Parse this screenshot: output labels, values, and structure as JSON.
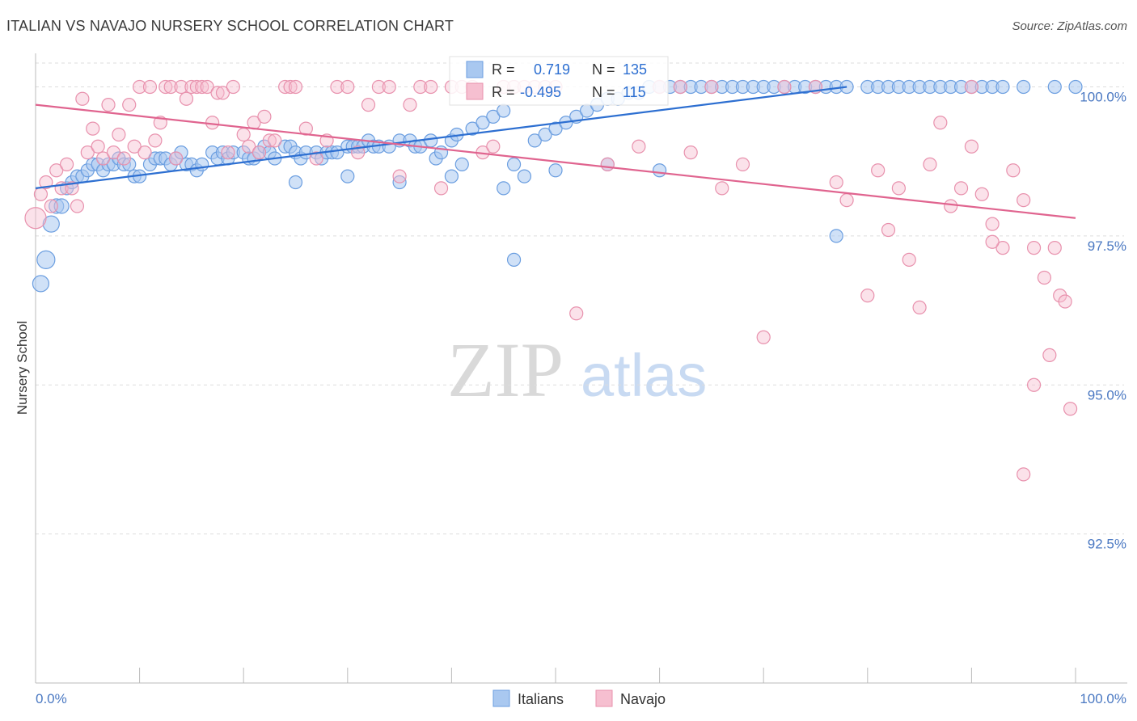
{
  "title": "ITALIAN VS NAVAJO NURSERY SCHOOL CORRELATION CHART",
  "source": "Source: ZipAtlas.com",
  "watermark": {
    "zip": "ZIP",
    "atlas": "atlas"
  },
  "colors": {
    "blue": "#6b9ee0",
    "blue_fill": "#a9c8f0",
    "blue_line": "#2d6fd1",
    "pink": "#e891ad",
    "pink_fill": "#f6bfd0",
    "pink_line": "#e0648f",
    "tick_label": "#4a78c2",
    "grid": "#dddddd"
  },
  "legend_top": {
    "row1": {
      "r_label": "R =",
      "r_value": "0.719",
      "n_label": "N =",
      "n_value": "135"
    },
    "row2": {
      "r_label": "R =",
      "r_value": "-0.495",
      "n_label": "N =",
      "n_value": "115"
    }
  },
  "legend_bottom": {
    "italians": "Italians",
    "navajo": "Navajo"
  },
  "chart_data": {
    "type": "scatter",
    "title": "ITALIAN VS NAVAJO NURSERY SCHOOL CORRELATION CHART",
    "xlabel": "",
    "ylabel": "Nursery School",
    "xlim": [
      0,
      100
    ],
    "ylim": [
      90.0,
      100.4
    ],
    "x_tick_labels": [
      "0.0%",
      "100.0%"
    ],
    "y_ticks": [
      {
        "value": 100.0,
        "label": "100.0%"
      },
      {
        "value": 97.5,
        "label": "97.5%"
      },
      {
        "value": 95.0,
        "label": "95.0%"
      },
      {
        "value": 92.5,
        "label": "92.5%"
      }
    ],
    "grid": true,
    "series": [
      {
        "name": "Italians",
        "r": 0.719,
        "n": 135,
        "trend": {
          "x": [
            0,
            78
          ],
          "y": [
            98.3,
            100.0
          ]
        },
        "points": [
          [
            0.5,
            96.7
          ],
          [
            1,
            97.1
          ],
          [
            1.5,
            97.7
          ],
          [
            2,
            98
          ],
          [
            2.5,
            98
          ],
          [
            3,
            98.3
          ],
          [
            3.5,
            98.4
          ],
          [
            4,
            98.5
          ],
          [
            4.5,
            98.5
          ],
          [
            5,
            98.6
          ],
          [
            5.5,
            98.7
          ],
          [
            6,
            98.7
          ],
          [
            6.5,
            98.6
          ],
          [
            7,
            98.7
          ],
          [
            7.5,
            98.7
          ],
          [
            8,
            98.8
          ],
          [
            8.5,
            98.7
          ],
          [
            9,
            98.7
          ],
          [
            9.5,
            98.5
          ],
          [
            10,
            98.5
          ],
          [
            11,
            98.7
          ],
          [
            11.5,
            98.8
          ],
          [
            12,
            98.8
          ],
          [
            12.5,
            98.8
          ],
          [
            13,
            98.7
          ],
          [
            13.5,
            98.8
          ],
          [
            14,
            98.9
          ],
          [
            14.5,
            98.7
          ],
          [
            15,
            98.7
          ],
          [
            15.5,
            98.6
          ],
          [
            16,
            98.7
          ],
          [
            17,
            98.9
          ],
          [
            17.5,
            98.8
          ],
          [
            18,
            98.9
          ],
          [
            18.5,
            98.8
          ],
          [
            19,
            98.9
          ],
          [
            20,
            98.9
          ],
          [
            20.5,
            98.8
          ],
          [
            21,
            98.8
          ],
          [
            21.5,
            98.9
          ],
          [
            22,
            99
          ],
          [
            22.5,
            98.9
          ],
          [
            23,
            98.8
          ],
          [
            24,
            99
          ],
          [
            24.5,
            99
          ],
          [
            25,
            98.9
          ],
          [
            25.5,
            98.8
          ],
          [
            26,
            98.9
          ],
          [
            27,
            98.9
          ],
          [
            27.5,
            98.8
          ],
          [
            28,
            98.9
          ],
          [
            28.5,
            98.9
          ],
          [
            29,
            98.9
          ],
          [
            30,
            99
          ],
          [
            30.5,
            99
          ],
          [
            31,
            99
          ],
          [
            31.5,
            99
          ],
          [
            32,
            99.1
          ],
          [
            32.5,
            99
          ],
          [
            33,
            99
          ],
          [
            34,
            99
          ],
          [
            35,
            99.1
          ],
          [
            36,
            99.1
          ],
          [
            36.5,
            99
          ],
          [
            37,
            99
          ],
          [
            38,
            99.1
          ],
          [
            38.5,
            98.8
          ],
          [
            39,
            98.9
          ],
          [
            40,
            99.1
          ],
          [
            40.5,
            99.2
          ],
          [
            41,
            98.7
          ],
          [
            42,
            99.3
          ],
          [
            43,
            99.4
          ],
          [
            44,
            99.5
          ],
          [
            45,
            99.6
          ],
          [
            46,
            98.7
          ],
          [
            47,
            98.5
          ],
          [
            48,
            99.1
          ],
          [
            49,
            99.2
          ],
          [
            50,
            99.3
          ],
          [
            51,
            99.4
          ],
          [
            52,
            99.5
          ],
          [
            53,
            99.6
          ],
          [
            54,
            99.7
          ],
          [
            55,
            99.8
          ],
          [
            56,
            99.8
          ],
          [
            57,
            99.9
          ],
          [
            58,
            99.9
          ],
          [
            59,
            100
          ],
          [
            60,
            100
          ],
          [
            61,
            100
          ],
          [
            62,
            100
          ],
          [
            63,
            100
          ],
          [
            64,
            100
          ],
          [
            65,
            100
          ],
          [
            66,
            100
          ],
          [
            67,
            100
          ],
          [
            68,
            100
          ],
          [
            69,
            100
          ],
          [
            70,
            100
          ],
          [
            71,
            100
          ],
          [
            72,
            100
          ],
          [
            73,
            100
          ],
          [
            74,
            100
          ],
          [
            75,
            100
          ],
          [
            76,
            100
          ],
          [
            77,
            100
          ],
          [
            78,
            100
          ],
          [
            80,
            100
          ],
          [
            81,
            100
          ],
          [
            82,
            100
          ],
          [
            83,
            100
          ],
          [
            84,
            100
          ],
          [
            85,
            100
          ],
          [
            86,
            100
          ],
          [
            87,
            100
          ],
          [
            88,
            100
          ],
          [
            89,
            100
          ],
          [
            90,
            100
          ],
          [
            91,
            100
          ],
          [
            92,
            100
          ],
          [
            93,
            100
          ],
          [
            95,
            100
          ],
          [
            98,
            100
          ],
          [
            100,
            100
          ],
          [
            46,
            97.1
          ],
          [
            45,
            98.3
          ],
          [
            40,
            98.5
          ],
          [
            30,
            98.5
          ],
          [
            25,
            98.4
          ],
          [
            55,
            98.7
          ],
          [
            50,
            98.6
          ],
          [
            35,
            98.4
          ],
          [
            60,
            98.6
          ],
          [
            77,
            97.5
          ]
        ]
      },
      {
        "name": "Navajo",
        "r": -0.495,
        "n": 115,
        "trend": {
          "x": [
            0,
            100
          ],
          "y": [
            99.7,
            97.8
          ]
        },
        "points": [
          [
            0,
            97.8
          ],
          [
            0.5,
            98.2
          ],
          [
            1,
            98.4
          ],
          [
            1.5,
            98
          ],
          [
            2,
            98.6
          ],
          [
            2.5,
            98.3
          ],
          [
            3,
            98.7
          ],
          [
            3.5,
            98.3
          ],
          [
            4,
            98
          ],
          [
            4.5,
            99.8
          ],
          [
            5,
            98.9
          ],
          [
            5.5,
            99.3
          ],
          [
            6,
            99
          ],
          [
            6.5,
            98.8
          ],
          [
            7,
            99.7
          ],
          [
            7.5,
            98.9
          ],
          [
            8,
            99.2
          ],
          [
            8.5,
            98.8
          ],
          [
            9,
            99.7
          ],
          [
            9.5,
            99
          ],
          [
            10,
            100
          ],
          [
            10.5,
            98.9
          ],
          [
            11,
            100
          ],
          [
            11.5,
            99.1
          ],
          [
            12,
            99.4
          ],
          [
            12.5,
            100
          ],
          [
            13,
            100
          ],
          [
            13.5,
            98.8
          ],
          [
            14,
            100
          ],
          [
            14.5,
            99.8
          ],
          [
            15,
            100
          ],
          [
            15.5,
            100
          ],
          [
            16,
            100
          ],
          [
            16.5,
            100
          ],
          [
            17,
            99.4
          ],
          [
            17.5,
            99.9
          ],
          [
            18,
            99.9
          ],
          [
            18.5,
            98.9
          ],
          [
            19,
            100
          ],
          [
            20,
            99.2
          ],
          [
            20.5,
            99
          ],
          [
            21,
            99.4
          ],
          [
            21.5,
            98.9
          ],
          [
            22,
            99.5
          ],
          [
            22.5,
            99.1
          ],
          [
            23,
            99.1
          ],
          [
            24,
            100
          ],
          [
            24.5,
            100
          ],
          [
            25,
            100
          ],
          [
            26,
            99.3
          ],
          [
            27,
            98.8
          ],
          [
            28,
            99.1
          ],
          [
            29,
            100
          ],
          [
            30,
            100
          ],
          [
            31,
            98.9
          ],
          [
            32,
            99.7
          ],
          [
            33,
            100
          ],
          [
            34,
            100
          ],
          [
            35,
            98.5
          ],
          [
            36,
            99.7
          ],
          [
            37,
            100
          ],
          [
            38,
            100
          ],
          [
            39,
            98.3
          ],
          [
            40,
            100
          ],
          [
            41,
            100
          ],
          [
            42,
            100
          ],
          [
            43,
            98.9
          ],
          [
            44,
            99
          ],
          [
            45,
            100
          ],
          [
            46,
            100
          ],
          [
            47,
            100
          ],
          [
            48,
            100
          ],
          [
            49,
            100
          ],
          [
            50,
            100
          ],
          [
            52,
            96.2
          ],
          [
            55,
            98.7
          ],
          [
            58,
            99
          ],
          [
            60,
            100
          ],
          [
            62,
            100
          ],
          [
            63,
            98.9
          ],
          [
            65,
            100
          ],
          [
            66,
            98.3
          ],
          [
            68,
            98.7
          ],
          [
            70,
            95.8
          ],
          [
            72,
            100
          ],
          [
            75,
            100
          ],
          [
            77,
            98.4
          ],
          [
            78,
            98.1
          ],
          [
            80,
            96.5
          ],
          [
            81,
            98.6
          ],
          [
            82,
            97.6
          ],
          [
            83,
            98.3
          ],
          [
            84,
            97.1
          ],
          [
            85,
            96.3
          ],
          [
            86,
            98.7
          ],
          [
            87,
            99.4
          ],
          [
            88,
            98
          ],
          [
            89,
            98.3
          ],
          [
            90,
            99
          ],
          [
            91,
            98.2
          ],
          [
            92,
            97.7
          ],
          [
            93,
            97.3
          ],
          [
            94,
            98.6
          ],
          [
            95,
            98.1
          ],
          [
            96,
            97.3
          ],
          [
            97,
            96.8
          ],
          [
            97.5,
            95.5
          ],
          [
            98,
            97.3
          ],
          [
            98.5,
            96.5
          ],
          [
            99,
            96.4
          ],
          [
            99.5,
            94.6
          ],
          [
            95,
            93.5
          ],
          [
            96,
            95
          ],
          [
            92,
            97.4
          ],
          [
            90,
            100
          ]
        ]
      }
    ]
  }
}
